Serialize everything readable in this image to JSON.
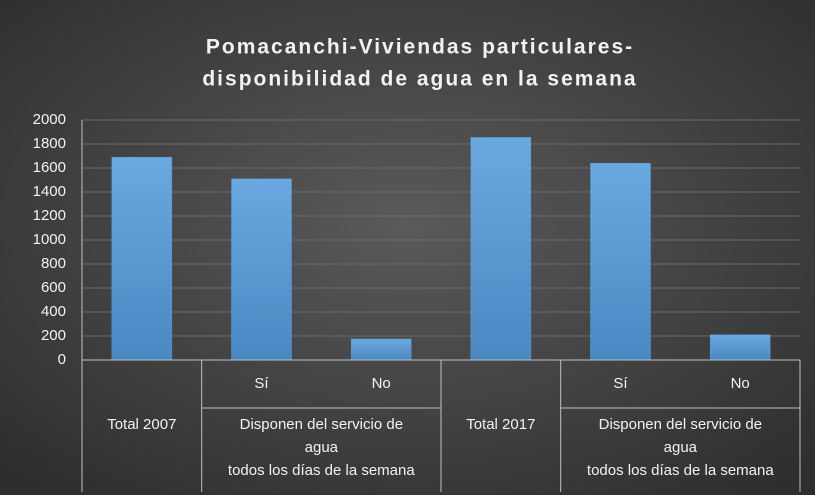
{
  "chart_data": {
    "type": "bar",
    "title": [
      "Pomacanchi-Viviendas particulares-",
      "disponibilidad de agua en la semana"
    ],
    "groups": [
      {
        "label": [
          "Total 2007"
        ],
        "categories": [
          null
        ]
      },
      {
        "label": [
          "Disponen del servicio de",
          "agua",
          "todos los días de la semana"
        ],
        "categories": [
          "Sí",
          "No"
        ]
      },
      {
        "label": [
          "Total 2017"
        ],
        "categories": [
          null
        ]
      },
      {
        "label": [
          "Disponen del servicio de",
          "agua",
          "todos los días de la semana"
        ],
        "categories": [
          "Sí",
          "No"
        ]
      }
    ],
    "values": [
      1690,
      1510,
      175,
      1855,
      1640,
      210
    ],
    "color": "#5b9bd5",
    "ylim": [
      0,
      2000
    ],
    "yticks": [
      0,
      200,
      400,
      600,
      800,
      1000,
      1200,
      1400,
      1600,
      1800,
      2000
    ],
    "grid": true
  }
}
